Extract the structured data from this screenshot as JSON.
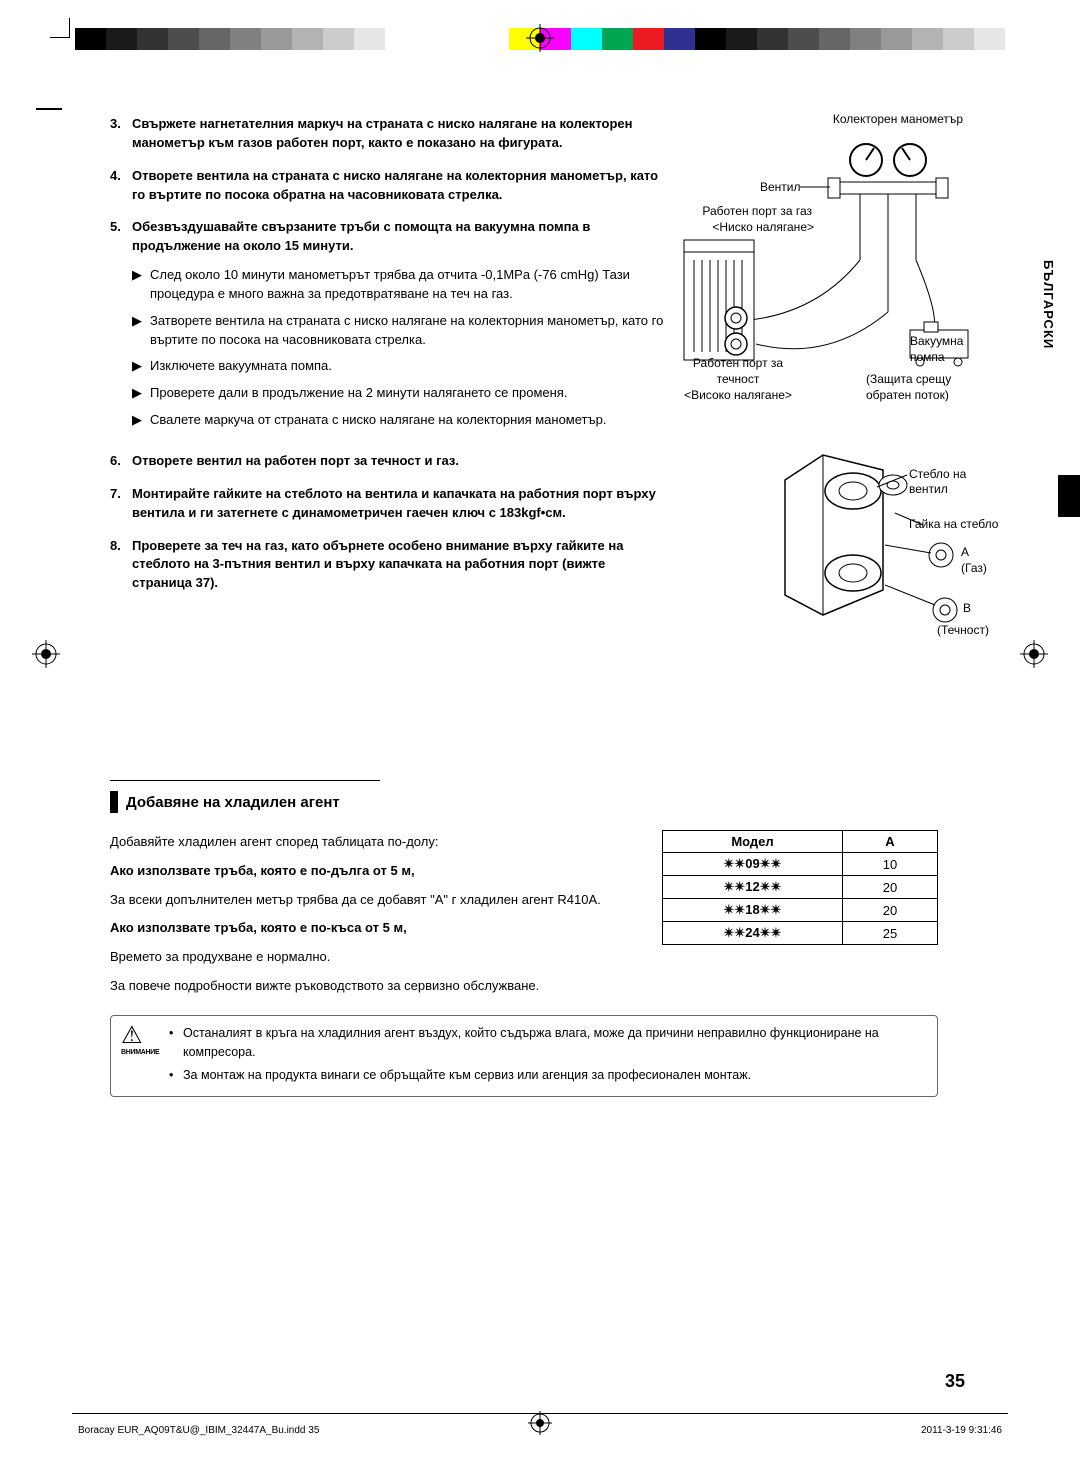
{
  "colorbar": [
    "#000000",
    "#1a1a1a",
    "#333333",
    "#4d4d4d",
    "#666666",
    "#808080",
    "#999999",
    "#b3b3b3",
    "#cccccc",
    "#e6e6e6",
    "#ffffff",
    "#ffffff",
    "#ffffff",
    "#ffffff",
    "#ffff00",
    "#ff00ff",
    "#00ffff",
    "#00a651",
    "#ed1c24",
    "#2e3192",
    "#000000",
    "#1a1a1a",
    "#333333",
    "#4d4d4d",
    "#666666",
    "#808080",
    "#999999",
    "#b3b3b3",
    "#cccccc",
    "#e6e6e6"
  ],
  "side_label": "БЪЛГАРСКИ",
  "steps": [
    {
      "num": "3.",
      "bold": true,
      "text": "Свържете нагнетателния маркуч на страната с ниско налягане на колекторен манометър към газов работен порт, както е показано на фигурата."
    },
    {
      "num": "4.",
      "bold": true,
      "text": "Отворете вентила на страната с ниско налягане на колекторния манометър, като го въртите по посока обратна на часовниковата стрелка."
    },
    {
      "num": "5.",
      "bold": true,
      "text": "Обезвъздушавайте свързаните тръби с помощта на вакуумна помпа в продължение на около 15 минути.",
      "subs": [
        "След около 10 минути манометърът трябва да отчита -0,1MPa (-76 cmHg) Тази процедура е много важна за предотвратяване на теч на газ.",
        "Затворете вентила на страната с ниско налягане на колекторния манометър, като го въртите по посока на часовниковата стрелка.",
        "Изключете вакуумната помпа.",
        "Проверете дали в продължение на 2 минути налягането се променя.",
        "Свалете маркуча от страната с ниско налягане на колекторния манометър."
      ]
    },
    {
      "num": "6.",
      "bold": true,
      "text": "Отворете вентил на работен порт за течност и газ."
    },
    {
      "num": "7.",
      "bold": true,
      "text": "Монтирайте гайките на стеблото на вентила и капачката на работния порт върху вентила и ги затегнете с динамометричен гаечен ключ с 183kgf•см."
    },
    {
      "num": "8.",
      "bold": true,
      "text": "Проверете за теч на газ, като обърнете особено внимание върху гайките на стеблото на 3-пътния вентил и върху капачката на работния порт (вижте страница 37)."
    }
  ],
  "fig1": {
    "l1": "Колекторен манометър",
    "l2": "Вентил",
    "l3": "Работен порт за газ",
    "l4": "<Ниско налягане>",
    "l5": "Вакуумна",
    "l6": "помпа",
    "l7": "Работен порт за",
    "l8": "течност",
    "l9": "<Високо налягане>",
    "l10": "(Защита срещу",
    "l11": "обратен поток)"
  },
  "fig2": {
    "l1": "Стебло на вентил",
    "l2": "Гайка на стебло",
    "l3": "A",
    "l4": "(Газ)",
    "l5": "B",
    "l6": "(Течност)"
  },
  "section_title": "Добавяне на хладилен агент",
  "body2": {
    "p1": "Добавяйте хладилен агент според таблицата по-долу:",
    "p2": "Ако използвате тръба, която е по-дълга от 5 м,",
    "p3": "За всеки допълнителен метър трябва да се добавят \"A\" г хладилен агент R410A.",
    "p4": "Ако използвате тръба, която е по-къса от 5 м,",
    "p5": "Времето за продухване е нормално.",
    "p6": "За повече подробности вижте ръководството за сервизно обслужване."
  },
  "table": {
    "head": [
      "Модел",
      "A"
    ],
    "rows": [
      [
        "✴✴09✴✴",
        "10"
      ],
      [
        "✴✴12✴✴",
        "20"
      ],
      [
        "✴✴18✴✴",
        "20"
      ],
      [
        "✴✴24✴✴",
        "25"
      ]
    ]
  },
  "caution": {
    "label": "ВНИМАНИЕ",
    "items": [
      "Останалият в кръга на хладилния агент въздух, който съдържа влага, може да причини неправилно функциониране на компресора.",
      "За монтаж на продукта винаги се обръщайте към сервиз или агенция за професионален монтаж."
    ]
  },
  "page_number": "35",
  "footer": {
    "left": "Boracay EUR_AQ09T&U@_IBIM_32447A_Bu.indd   35",
    "right": "2011-3-19   9:31:46"
  }
}
